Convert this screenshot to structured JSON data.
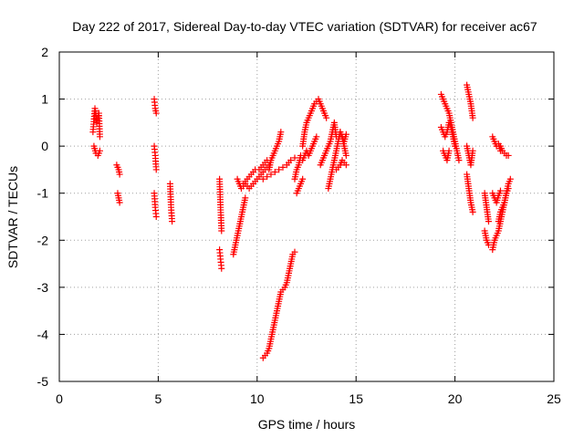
{
  "chart_data": {
    "type": "scatter",
    "title": "Day 222 of 2017, Sidereal Day-to-day VTEC variation (SDTVAR) for receiver ac67",
    "xlabel": "GPS time / hours",
    "ylabel": "SDTVAR / TECUs",
    "xlim": [
      0,
      25
    ],
    "ylim": [
      -5,
      2
    ],
    "xticks": [
      0,
      5,
      10,
      15,
      20,
      25
    ],
    "yticks": [
      -5,
      -4,
      -3,
      -2,
      -1,
      0,
      1,
      2
    ],
    "grid": true,
    "marker": "+",
    "color": "#ff0000",
    "segments": [
      {
        "x": [
          1.7,
          1.8,
          1.9,
          2.0,
          2.05
        ],
        "y": [
          0.3,
          0.8,
          0.5,
          0.7,
          0.2
        ]
      },
      {
        "x": [
          1.75,
          1.85,
          1.95,
          2.05
        ],
        "y": [
          0.0,
          -0.15,
          -0.2,
          -0.1
        ]
      },
      {
        "x": [
          2.9,
          3.0,
          3.05
        ],
        "y": [
          -0.4,
          -0.5,
          -0.6
        ]
      },
      {
        "x": [
          2.95,
          3.0,
          3.05
        ],
        "y": [
          -1.0,
          -1.1,
          -1.2
        ]
      },
      {
        "x": [
          4.8,
          4.85,
          4.9
        ],
        "y": [
          1.0,
          0.8,
          0.7
        ]
      },
      {
        "x": [
          4.8,
          4.85,
          4.9
        ],
        "y": [
          0.0,
          -0.2,
          -0.5
        ]
      },
      {
        "x": [
          4.8,
          4.85,
          4.9
        ],
        "y": [
          -1.0,
          -1.3,
          -1.5
        ]
      },
      {
        "x": [
          5.6,
          5.65,
          5.7
        ],
        "y": [
          -0.8,
          -1.3,
          -1.6
        ]
      },
      {
        "x": [
          8.1,
          8.15,
          8.2
        ],
        "y": [
          -0.7,
          -1.3,
          -1.8
        ]
      },
      {
        "x": [
          8.1,
          8.15,
          8.2
        ],
        "y": [
          -2.2,
          -2.4,
          -2.6
        ]
      },
      {
        "x": [
          8.8,
          8.9,
          9.0,
          9.1,
          9.2,
          9.3,
          9.4
        ],
        "y": [
          -2.3,
          -2.1,
          -1.9,
          -1.7,
          -1.5,
          -1.3,
          -1.1
        ]
      },
      {
        "x": [
          9.0,
          9.2,
          9.4,
          9.6,
          9.8,
          10.0,
          10.2,
          10.4,
          10.6
        ],
        "y": [
          -0.7,
          -0.9,
          -0.8,
          -0.9,
          -0.8,
          -0.7,
          -0.6,
          -0.5,
          -0.4
        ]
      },
      {
        "x": [
          9.3,
          9.5,
          9.7,
          9.9,
          10.1,
          10.3,
          10.5
        ],
        "y": [
          -0.8,
          -0.7,
          -0.6,
          -0.5,
          -0.5,
          -0.4,
          -0.3
        ]
      },
      {
        "x": [
          10.6,
          10.7,
          10.8,
          10.9,
          11.0,
          11.1,
          11.2
        ],
        "y": [
          -0.5,
          -0.3,
          -0.2,
          -0.1,
          0.0,
          0.1,
          0.3
        ]
      },
      {
        "x": [
          10.3,
          10.5,
          10.7,
          10.9,
          11.1,
          11.3,
          11.5,
          11.7,
          11.9
        ],
        "y": [
          -0.7,
          -0.65,
          -0.6,
          -0.55,
          -0.5,
          -0.45,
          -0.4,
          -0.3,
          -0.25
        ]
      },
      {
        "x": [
          11.9,
          12.0,
          12.1,
          12.2
        ],
        "y": [
          -0.7,
          -0.5,
          -0.4,
          -0.2
        ]
      },
      {
        "x": [
          10.3,
          10.4,
          10.5,
          10.6,
          10.7,
          10.8,
          10.9,
          11.0,
          11.1,
          11.2,
          11.3,
          11.4,
          11.5,
          11.6,
          11.7,
          11.8,
          11.9
        ],
        "y": [
          -4.5,
          -4.45,
          -4.4,
          -4.3,
          -4.1,
          -3.9,
          -3.7,
          -3.5,
          -3.3,
          -3.1,
          -3.05,
          -3.0,
          -2.9,
          -2.7,
          -2.5,
          -2.3,
          -2.25
        ]
      },
      {
        "x": [
          12.0,
          12.1,
          12.2,
          12.3
        ],
        "y": [
          -1.0,
          -0.9,
          -0.8,
          -0.7
        ]
      },
      {
        "x": [
          12.3,
          12.4,
          12.5,
          12.6,
          12.7,
          12.8,
          12.9,
          13.0,
          13.1,
          13.2,
          13.3,
          13.4,
          13.5
        ],
        "y": [
          0.0,
          0.3,
          0.5,
          0.6,
          0.7,
          0.8,
          0.9,
          0.95,
          1.0,
          0.9,
          0.8,
          0.7,
          0.6
        ]
      },
      {
        "x": [
          12.3,
          12.4,
          12.5,
          12.6,
          12.7,
          12.8,
          12.9,
          13.0
        ],
        "y": [
          -0.3,
          -0.2,
          -0.1,
          -0.2,
          -0.1,
          0.0,
          0.1,
          0.2
        ]
      },
      {
        "x": [
          13.2,
          13.3,
          13.4,
          13.5,
          13.6,
          13.7,
          13.8,
          13.9,
          14.0
        ],
        "y": [
          -0.4,
          -0.3,
          -0.2,
          -0.1,
          0.0,
          0.1,
          0.3,
          0.5,
          0.2
        ]
      },
      {
        "x": [
          13.6,
          13.7,
          13.8,
          13.9,
          14.0,
          14.1,
          14.2,
          14.3,
          14.4,
          14.5
        ],
        "y": [
          -0.9,
          -0.7,
          -0.5,
          -0.3,
          -0.1,
          0.1,
          0.3,
          0.2,
          0.0,
          -0.2
        ]
      },
      {
        "x": [
          14.0,
          14.1,
          14.2,
          14.3,
          14.4,
          14.5
        ],
        "y": [
          -0.5,
          -0.45,
          -0.4,
          -0.3,
          -0.35,
          -0.4
        ]
      },
      {
        "x": [
          14.2,
          14.3,
          14.4,
          14.5
        ],
        "y": [
          0.3,
          0.2,
          0.1,
          0.25
        ]
      },
      {
        "x": [
          19.3,
          19.4,
          19.5,
          19.6,
          19.7,
          19.8,
          19.9,
          20.0,
          20.1,
          20.2
        ],
        "y": [
          1.1,
          1.0,
          0.9,
          0.8,
          0.7,
          0.5,
          0.3,
          0.1,
          -0.1,
          -0.3
        ]
      },
      {
        "x": [
          19.3,
          19.4,
          19.5,
          19.6,
          19.7,
          19.8,
          19.9,
          20.0
        ],
        "y": [
          0.4,
          0.3,
          0.2,
          0.3,
          0.5,
          0.4,
          0.2,
          0.0
        ]
      },
      {
        "x": [
          19.4,
          19.5,
          19.6,
          19.7
        ],
        "y": [
          -0.1,
          -0.2,
          -0.3,
          -0.1
        ]
      },
      {
        "x": [
          20.6,
          20.7,
          20.8,
          20.9
        ],
        "y": [
          1.3,
          1.1,
          0.9,
          0.6
        ]
      },
      {
        "x": [
          20.6,
          20.7,
          20.8,
          20.9
        ],
        "y": [
          0.0,
          -0.2,
          -0.4,
          -0.1
        ]
      },
      {
        "x": [
          20.6,
          20.7,
          20.8,
          20.9
        ],
        "y": [
          -0.6,
          -0.9,
          -1.2,
          -1.4
        ]
      },
      {
        "x": [
          21.5,
          21.6,
          21.7
        ],
        "y": [
          -1.0,
          -1.3,
          -1.6
        ]
      },
      {
        "x": [
          21.5,
          21.6,
          21.7
        ],
        "y": [
          -1.8,
          -2.0,
          -2.1
        ]
      },
      {
        "x": [
          21.9,
          22.0,
          22.1,
          22.2,
          22.3
        ],
        "y": [
          0.2,
          0.1,
          0.0,
          0.05,
          -0.1
        ]
      },
      {
        "x": [
          22.3,
          22.4,
          22.5,
          22.6,
          22.7
        ],
        "y": [
          0.0,
          -0.1,
          -0.15,
          -0.2,
          -0.2
        ]
      },
      {
        "x": [
          21.9,
          22.0,
          22.1,
          22.2,
          22.3,
          22.4,
          22.5,
          22.6,
          22.7
        ],
        "y": [
          -2.2,
          -2.0,
          -1.9,
          -1.8,
          -1.6,
          -1.4,
          -1.2,
          -1.0,
          -0.9
        ]
      },
      {
        "x": [
          21.9,
          22.0,
          22.1,
          22.2,
          22.3
        ],
        "y": [
          -1.0,
          -1.1,
          -1.2,
          -1.05,
          -0.95
        ]
      },
      {
        "x": [
          22.2,
          22.3,
          22.4,
          22.5,
          22.6,
          22.7,
          22.8
        ],
        "y": [
          -1.6,
          -1.4,
          -1.3,
          -1.2,
          -1.0,
          -0.8,
          -0.7
        ]
      }
    ]
  }
}
